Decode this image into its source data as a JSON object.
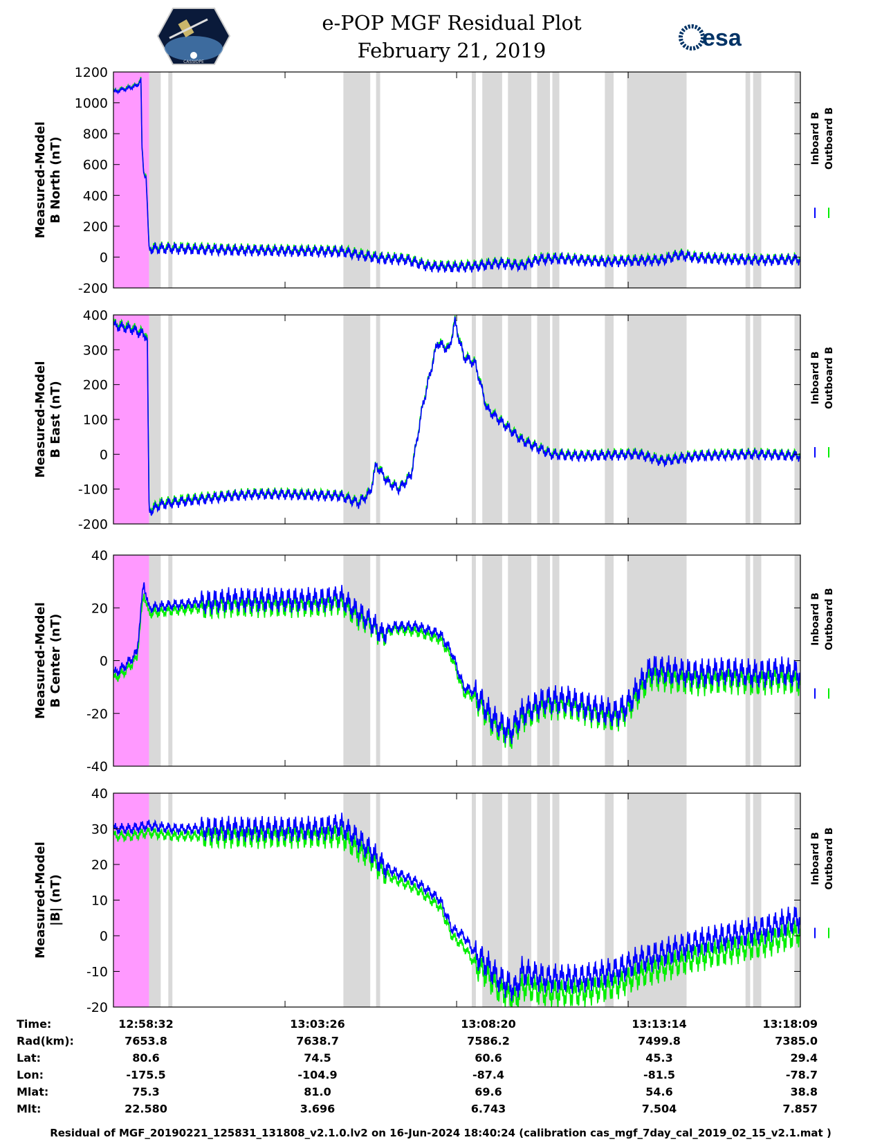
{
  "header": {
    "title": "e-POP MGF Residual Plot",
    "date": "February 21, 2019",
    "esa_label": "esa",
    "logo_caption": "CASSIOPE"
  },
  "footer": "Residual of MGF_20190221_125831_131808_v2.1.0.lv2 on 16-Jun-2024 18:40:24 (calibration cas_mgf_7day_cal_2019_02_15_v2.1.mat )",
  "colors": {
    "inboard": "#0000ff",
    "outboard": "#00ee00",
    "invalid": "#ff99ff",
    "gap": "#d9d9d9"
  },
  "info_table": {
    "row_labels": [
      "Time:",
      "Rad(km):",
      "Lat:",
      "Lon:",
      "Mlat:",
      "Mlt:"
    ],
    "columns": [
      [
        "12:58:32",
        "7653.8",
        "80.6",
        "-175.5",
        "75.3",
        "22.580"
      ],
      [
        "13:03:26",
        "7638.7",
        "74.5",
        "-104.9",
        "81.0",
        "3.696"
      ],
      [
        "13:08:20",
        "7586.2",
        "60.6",
        "-87.4",
        "69.6",
        "6.743"
      ],
      [
        "13:13:14",
        "7499.8",
        "45.3",
        "-81.5",
        "54.6",
        "7.504"
      ],
      [
        "13:18:09",
        "7385.0",
        "29.4",
        "-78.7",
        "38.8",
        "7.857"
      ]
    ]
  },
  "chart_data": [
    {
      "type": "line",
      "title": "",
      "ylabel": [
        "Measured-Model",
        "B North (nT)"
      ],
      "ylim": [
        -200,
        1200
      ],
      "yticks": [
        -200,
        0,
        200,
        400,
        600,
        800,
        1000,
        1200
      ],
      "legend": [
        "Inboard B",
        "Outboard B"
      ],
      "legend_position": "right",
      "xlim": [
        0,
        1177
      ],
      "xticks": [
        0,
        294,
        588,
        882,
        1177
      ],
      "invalid_region": [
        0,
        61
      ],
      "gap_regions": [
        [
          61,
          81
        ],
        [
          94,
          101
        ],
        [
          394,
          440
        ],
        [
          450,
          457
        ],
        [
          614,
          621
        ],
        [
          632,
          666
        ],
        [
          676,
          716
        ],
        [
          726,
          748
        ],
        [
          752,
          764
        ],
        [
          842,
          857
        ],
        [
          880,
          982
        ],
        [
          1083,
          1091
        ],
        [
          1096,
          1110
        ],
        [
          1167,
          1177
        ]
      ],
      "series": [
        {
          "name": "Inboard B",
          "x": [
            0,
            20,
            40,
            47,
            49,
            52,
            56,
            61,
            65,
            100,
            200,
            294,
            394,
            420,
            460,
            500,
            540,
            580,
            620,
            660,
            700,
            730,
            760,
            800,
            842,
            880,
            940,
            970,
            1000,
            1060,
            1120,
            1177
          ],
          "values": [
            1070,
            1090,
            1110,
            1150,
            700,
            540,
            520,
            50,
            55,
            55,
            45,
            40,
            35,
            15,
            -10,
            -15,
            -60,
            -65,
            -60,
            -40,
            -55,
            -15,
            -10,
            -20,
            -30,
            -25,
            -20,
            15,
            -5,
            -15,
            -20,
            -15
          ]
        },
        {
          "name": "Outboard B",
          "x": [
            0,
            20,
            40,
            47,
            49,
            52,
            56,
            61,
            65,
            100,
            200,
            294,
            394,
            420,
            460,
            500,
            540,
            580,
            620,
            660,
            700,
            730,
            760,
            800,
            842,
            880,
            940,
            970,
            1000,
            1060,
            1120,
            1177
          ],
          "values": [
            1075,
            1095,
            1115,
            1155,
            710,
            550,
            530,
            58,
            62,
            62,
            52,
            46,
            42,
            22,
            -3,
            -8,
            -53,
            -57,
            -53,
            -33,
            -48,
            -8,
            -4,
            -14,
            -24,
            -19,
            -14,
            20,
            0,
            -10,
            -15,
            -10
          ]
        }
      ]
    },
    {
      "type": "line",
      "title": "",
      "ylabel": [
        "Measured-Model",
        "B East (nT)"
      ],
      "ylim": [
        -200,
        400
      ],
      "yticks": [
        -200,
        -100,
        0,
        100,
        200,
        300,
        400
      ],
      "legend": [
        "Inboard B",
        "Outboard B"
      ],
      "legend_position": "right",
      "xlim": [
        0,
        1177
      ],
      "xticks": [
        0,
        294,
        588,
        882,
        1177
      ],
      "invalid_region": [
        0,
        61
      ],
      "gap_regions": [
        [
          61,
          81
        ],
        [
          94,
          101
        ],
        [
          394,
          440
        ],
        [
          450,
          457
        ],
        [
          614,
          621
        ],
        [
          632,
          666
        ],
        [
          676,
          716
        ],
        [
          726,
          748
        ],
        [
          752,
          764
        ],
        [
          842,
          857
        ],
        [
          880,
          982
        ],
        [
          1083,
          1091
        ],
        [
          1096,
          1110
        ],
        [
          1167,
          1177
        ]
      ],
      "series": [
        {
          "name": "Inboard B",
          "x": [
            0,
            30,
            56,
            58,
            61,
            80,
            120,
            200,
            240,
            294,
            390,
            420,
            440,
            450,
            470,
            490,
            510,
            530,
            555,
            575,
            585,
            600,
            620,
            640,
            660,
            700,
            750,
            800,
            900,
            940,
            1000,
            1100,
            1177
          ],
          "values": [
            370,
            360,
            340,
            330,
            -165,
            -145,
            -135,
            -120,
            -115,
            -115,
            -120,
            -140,
            -110,
            -30,
            -80,
            -100,
            -60,
            140,
            320,
            300,
            380,
            280,
            260,
            130,
            100,
            40,
            0,
            -5,
            0,
            -20,
            -5,
            0,
            -5
          ]
        },
        {
          "name": "Outboard B",
          "x": [
            0,
            30,
            56,
            58,
            61,
            80,
            120,
            200,
            240,
            294,
            390,
            420,
            440,
            450,
            470,
            490,
            510,
            530,
            555,
            575,
            585,
            600,
            620,
            640,
            660,
            700,
            750,
            800,
            900,
            940,
            1000,
            1100,
            1177
          ],
          "values": [
            375,
            365,
            345,
            335,
            -160,
            -140,
            -130,
            -117,
            -112,
            -112,
            -117,
            -137,
            -107,
            -27,
            -77,
            -97,
            -57,
            143,
            323,
            303,
            383,
            283,
            263,
            133,
            103,
            43,
            3,
            -2,
            3,
            -17,
            -2,
            3,
            -2
          ]
        }
      ]
    },
    {
      "type": "line",
      "title": "",
      "ylabel": [
        "Measured-Model",
        "B Center (nT)"
      ],
      "ylim": [
        -40,
        40
      ],
      "yticks": [
        -40,
        -20,
        0,
        20,
        40
      ],
      "legend": [
        "Inboard B",
        "Outboard B"
      ],
      "legend_position": "right",
      "xlim": [
        0,
        1177
      ],
      "xticks": [
        0,
        294,
        588,
        882,
        1177
      ],
      "invalid_region": [
        0,
        61
      ],
      "gap_regions": [
        [
          61,
          81
        ],
        [
          94,
          101
        ],
        [
          394,
          440
        ],
        [
          450,
          457
        ],
        [
          614,
          621
        ],
        [
          632,
          666
        ],
        [
          676,
          716
        ],
        [
          726,
          748
        ],
        [
          752,
          764
        ],
        [
          842,
          857
        ],
        [
          880,
          982
        ],
        [
          1083,
          1091
        ],
        [
          1096,
          1110
        ],
        [
          1167,
          1177
        ]
      ],
      "series": [
        {
          "name": "Inboard B",
          "x": [
            0,
            20,
            40,
            52,
            60,
            100,
            150,
            200,
            250,
            294,
            350,
            390,
            420,
            440,
            460,
            480,
            520,
            560,
            580,
            600,
            620,
            650,
            680,
            700,
            740,
            780,
            820,
            860,
            880,
            920,
            960,
            1000,
            1050,
            1100,
            1140,
            1177
          ],
          "values": [
            -5,
            -2,
            3,
            30,
            20,
            21,
            22,
            23,
            23,
            23,
            23,
            24,
            18,
            15,
            10,
            13,
            13,
            10,
            3,
            -10,
            -12,
            -22,
            -27,
            -20,
            -15,
            -15,
            -18,
            -20,
            -17,
            -3,
            -4,
            -5,
            -4,
            -5,
            -4,
            -5
          ]
        },
        {
          "name": "Outboard B",
          "x": [
            0,
            20,
            40,
            52,
            60,
            100,
            150,
            200,
            250,
            294,
            350,
            390,
            420,
            440,
            460,
            480,
            520,
            560,
            580,
            600,
            620,
            650,
            680,
            700,
            740,
            780,
            820,
            860,
            880,
            920,
            960,
            1000,
            1050,
            1100,
            1140,
            1177
          ],
          "values": [
            -7,
            -4,
            1,
            26,
            18,
            19,
            20,
            21,
            21,
            21,
            21,
            22,
            16,
            14,
            9,
            12,
            11,
            8,
            1,
            -12,
            -14,
            -24,
            -29,
            -22,
            -17,
            -17,
            -20,
            -22,
            -19,
            -6,
            -7,
            -8,
            -7,
            -8,
            -7,
            -8
          ]
        }
      ]
    },
    {
      "type": "line",
      "title": "",
      "ylabel": [
        "Measured-Model",
        "|B| (nT)"
      ],
      "ylim": [
        -20,
        40
      ],
      "yticks": [
        -20,
        -10,
        0,
        10,
        20,
        30,
        40
      ],
      "legend": [
        "Inboard B",
        "Outboard B"
      ],
      "legend_position": "right",
      "xlim": [
        0,
        1177
      ],
      "xticks": [
        0,
        294,
        588,
        882,
        1177
      ],
      "invalid_region": [
        0,
        61
      ],
      "gap_regions": [
        [
          61,
          81
        ],
        [
          94,
          101
        ],
        [
          394,
          440
        ],
        [
          450,
          457
        ],
        [
          614,
          621
        ],
        [
          632,
          666
        ],
        [
          676,
          716
        ],
        [
          726,
          748
        ],
        [
          752,
          764
        ],
        [
          842,
          857
        ],
        [
          880,
          982
        ],
        [
          1083,
          1091
        ],
        [
          1096,
          1110
        ],
        [
          1167,
          1177
        ]
      ],
      "series": [
        {
          "name": "Inboard B",
          "x": [
            0,
            30,
            60,
            100,
            150,
            200,
            250,
            294,
            350,
            390,
            420,
            440,
            460,
            480,
            520,
            560,
            580,
            600,
            620,
            640,
            660,
            690,
            700,
            740,
            800,
            860,
            900,
            960,
            1000,
            1060,
            1120,
            1177
          ],
          "values": [
            30,
            30,
            31,
            30,
            30,
            30,
            30,
            30,
            30,
            31,
            27,
            24,
            20,
            18,
            15,
            10,
            2,
            0,
            -5,
            -8,
            -12,
            -15,
            -10,
            -12,
            -12,
            -10,
            -7,
            -4,
            -2,
            0,
            2,
            5
          ]
        },
        {
          "name": "Outboard B",
          "x": [
            0,
            30,
            60,
            100,
            150,
            200,
            250,
            294,
            350,
            390,
            420,
            440,
            460,
            480,
            520,
            560,
            580,
            600,
            620,
            640,
            660,
            690,
            700,
            740,
            800,
            860,
            900,
            960,
            1000,
            1060,
            1120,
            1177
          ],
          "values": [
            28,
            28,
            29,
            28,
            28,
            28,
            28,
            28,
            28,
            28,
            24,
            22,
            18,
            16,
            13,
            8,
            0,
            -3,
            -8,
            -11,
            -15,
            -18,
            -14,
            -16,
            -16,
            -14,
            -11,
            -8,
            -6,
            -4,
            -2,
            1
          ]
        }
      ]
    }
  ]
}
